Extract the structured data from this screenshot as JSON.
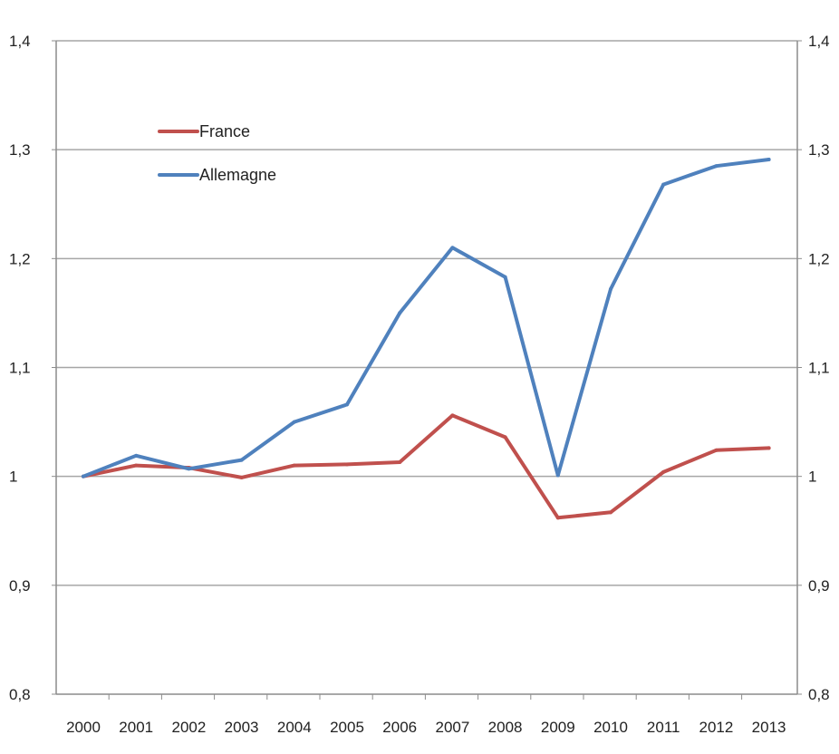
{
  "chart_data": {
    "type": "line",
    "title": "",
    "xlabel": "",
    "ylabel": "",
    "categories": [
      "2000",
      "2001",
      "2002",
      "2003",
      "2004",
      "2005",
      "2006",
      "2007",
      "2008",
      "2009",
      "2010",
      "2011",
      "2012",
      "2013"
    ],
    "ylim": [
      0.8,
      1.4
    ],
    "yticks": [
      0.8,
      0.9,
      1.0,
      1.1,
      1.2,
      1.3,
      1.4
    ],
    "ytick_labels": [
      "0,8",
      "0,9",
      "1",
      "1,1",
      "1,2",
      "1,3",
      "1,4"
    ],
    "grid": true,
    "secondary_y_axis": true,
    "legend_position": "top-left",
    "series": [
      {
        "name": "France",
        "color": "#c0504d",
        "values": [
          1.0,
          1.01,
          1.008,
          0.999,
          1.01,
          1.011,
          1.013,
          1.056,
          1.036,
          0.962,
          0.967,
          1.004,
          1.024,
          1.026
        ]
      },
      {
        "name": "Allemagne",
        "color": "#4f81bd",
        "values": [
          1.0,
          1.019,
          1.007,
          1.015,
          1.05,
          1.066,
          1.15,
          1.21,
          1.183,
          1.001,
          1.172,
          1.268,
          1.285,
          1.291
        ]
      }
    ]
  }
}
